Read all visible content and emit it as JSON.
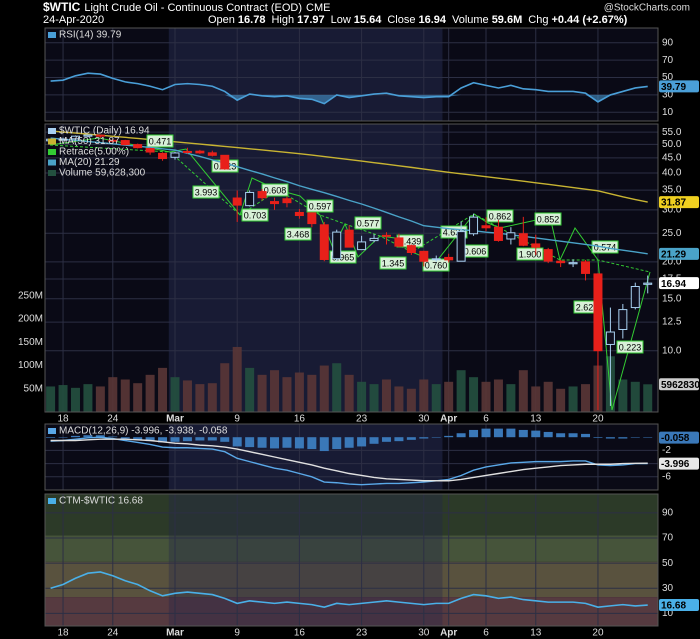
{
  "header": {
    "symbol": "$WTIC",
    "name": "Light Crude Oil - Continuous Contract (EOD)",
    "exchange": "CME",
    "watermark": "@StockCharts.com",
    "date": "24-Apr-2020",
    "stats": [
      {
        "label": "Open",
        "value": 16.78
      },
      {
        "label": "High",
        "value": 17.97
      },
      {
        "label": "Low",
        "value": 15.64
      },
      {
        "label": "Close",
        "value": 16.94
      },
      {
        "label": "Volume",
        "value": "59.6M"
      },
      {
        "label": "Chg",
        "value": "+0.44 (+2.67%)"
      }
    ]
  },
  "chart_data": [
    {
      "type": "line",
      "label": "RSI(14) 39.79",
      "ylim": [
        0,
        107
      ],
      "yticks": [
        10,
        30,
        50,
        70,
        90
      ],
      "grid": true,
      "fill_below": 30,
      "series": [
        {
          "color": "#4a9fd8",
          "tag": "#4a9fd8",
          "values": [
            46,
            47,
            52,
            55,
            54,
            49,
            45,
            43,
            40,
            36,
            42,
            43,
            42,
            40,
            34,
            24,
            31,
            29,
            28,
            29,
            26,
            25,
            20,
            30,
            27,
            29,
            31,
            32,
            29,
            28,
            27,
            28,
            28,
            38,
            44,
            41,
            38,
            41,
            37,
            36,
            34,
            34,
            34,
            32,
            22,
            30,
            34,
            38,
            39.79
          ]
        }
      ]
    },
    {
      "type": "candlestick",
      "log": true,
      "ylim": [
        6.2,
        58.6
      ],
      "grid": true,
      "yticks": [
        {
          "value": 55,
          "label": "55.0"
        },
        {
          "value": 50,
          "label": "50.0"
        },
        {
          "value": 45,
          "label": "45.0"
        },
        {
          "value": 40,
          "label": "40.0"
        },
        {
          "value": 35,
          "label": "35.0"
        },
        {
          "value": 30,
          "label": "30.0"
        },
        {
          "value": 25,
          "label": "25.0"
        },
        {
          "value": 20,
          "label": "20.0"
        },
        17.5,
        {
          "value": 15,
          "label": "15.0"
        },
        12.5,
        {
          "value": 10,
          "label": "10.0"
        }
      ],
      "y2lim": [
        0,
        620000000
      ],
      "y2ticks": [
        {
          "value": 50000000,
          "label": "50M"
        },
        {
          "value": 100000000,
          "label": "100M"
        },
        {
          "value": 150000000,
          "label": "150M"
        },
        {
          "value": 200000000,
          "label": "200M"
        },
        {
          "value": 250000000,
          "label": "250M"
        }
      ],
      "categories": [
        null,
        "18",
        null,
        null,
        null,
        "24",
        null,
        null,
        null,
        null,
        "Mar",
        null,
        null,
        null,
        null,
        "9",
        null,
        null,
        null,
        null,
        "16",
        null,
        null,
        null,
        null,
        "23",
        null,
        null,
        null,
        null,
        "30",
        null,
        "Apr",
        null,
        null,
        "6",
        null,
        null,
        null,
        "13",
        null,
        null,
        null,
        null,
        "20",
        null,
        null,
        null,
        null
      ],
      "series": [
        {
          "name": "$WTIC (Daily) 16.94",
          "up_color": "#a8d0f0",
          "down_color": "#e8201a",
          "tag": "#ffffff",
          "open": [
            51.4,
            52.0,
            52.2,
            53.3,
            53.7,
            51.6,
            51.5,
            49.9,
            48.4,
            46.6,
            45.2,
            47.3,
            47.4,
            46.8,
            45.9,
            32.9,
            31.0,
            34.6,
            32.0,
            32.7,
            29.4,
            29.3,
            26.7,
            20.5,
            25.6,
            22.0,
            23.6,
            24.6,
            24.1,
            22.7,
            21.7,
            20.4,
            20.7,
            20.1,
            24.9,
            26.5,
            26.2,
            23.9,
            24.9,
            23.0,
            22.0,
            20.1,
            19.7,
            20.0,
            18.2,
            10.5,
            11.8,
            14.0,
            16.78
          ],
          "high": [
            52.2,
            52.7,
            53.6,
            54.0,
            53.9,
            51.9,
            51.8,
            50.3,
            48.7,
            47.0,
            47.1,
            48.7,
            47.9,
            47.6,
            46.0,
            34.9,
            34.9,
            35.3,
            33.0,
            33.3,
            30.2,
            29.4,
            27.3,
            25.7,
            26.6,
            24.5,
            24.8,
            25.2,
            24.9,
            22.9,
            21.8,
            21.0,
            21.3,
            27.4,
            29.1,
            28.3,
            27.7,
            26.2,
            28.4,
            24.7,
            22.3,
            20.3,
            20.4,
            20.3,
            18.3,
            14.0,
            14.4,
            17.0,
            17.97
          ],
          "low": [
            51.1,
            51.7,
            52.0,
            52.8,
            52.6,
            50.4,
            49.6,
            48.4,
            46.1,
            44.0,
            44.4,
            46.5,
            46.4,
            45.5,
            41.0,
            27.3,
            30.8,
            32.3,
            30.0,
            30.6,
            28.0,
            26.2,
            20.1,
            20.1,
            22.4,
            22.0,
            23.3,
            22.9,
            22.4,
            21.1,
            19.3,
            20.0,
            19.9,
            20.1,
            24.5,
            25.4,
            23.4,
            22.9,
            22.6,
            21.1,
            19.8,
            19.2,
            19.2,
            17.3,
            6.3,
            6.5,
            11.0,
            13.8,
            15.64
          ],
          "close": [
            52.05,
            52.05,
            53.29,
            53.78,
            53.38,
            51.43,
            49.9,
            48.73,
            47.09,
            44.76,
            46.75,
            47.18,
            46.78,
            45.9,
            41.28,
            31.13,
            34.36,
            32.98,
            31.5,
            31.73,
            28.7,
            26.95,
            20.37,
            25.22,
            22.43,
            23.36,
            24.01,
            24.49,
            22.6,
            21.51,
            20.09,
            20.48,
            20.31,
            25.32,
            28.34,
            26.08,
            23.63,
            25.09,
            22.76,
            22.41,
            20.11,
            19.87,
            19.87,
            18.27,
            10.0,
            11.57,
            13.78,
            16.5,
            16.94
          ]
        },
        {
          "name": "MA(50) 31.87",
          "color": "#c8b432",
          "tag": "#f0d020",
          "values": [
            55.5,
            55.05,
            54.6,
            54.15,
            53.7,
            53.25,
            52.8,
            52.35,
            51.9,
            51.45,
            51.0,
            50.55,
            50.1,
            49.65,
            49.2,
            48.75,
            48.3,
            47.85,
            47.4,
            46.95,
            46.5,
            45.98,
            45.45,
            44.93,
            44.4,
            43.88,
            43.35,
            42.83,
            42.3,
            41.78,
            41.25,
            40.73,
            40.2,
            39.75,
            39.3,
            38.85,
            38.4,
            37.95,
            37.5,
            37.05,
            36.6,
            36.15,
            35.7,
            35.25,
            34.8,
            34.0,
            33.2,
            32.5,
            31.87
          ]
        },
        {
          "name": "Retrace(5.00%)",
          "color": "#33cc33",
          "annotations": [
            "0.471",
            "0.423",
            "3.993",
            "0.703",
            "0.608",
            "0.597",
            "3.468",
            "0.965",
            "0.577",
            "1.345",
            "0.439",
            "0.760",
            "4.638",
            "0.606",
            "0.862",
            "1.900",
            "0.852",
            "0.574",
            "2.628",
            "0.223"
          ]
        },
        {
          "name": "MA(20) 21.29",
          "color": "#4aa3c8",
          "tag": "#4aa3c8",
          "values": [
            52.5,
            52.0,
            51.6,
            51.1,
            50.7,
            50.2,
            49.7,
            49.3,
            48.8,
            48.3,
            47.8,
            46.6,
            45.5,
            44.3,
            43.2,
            42.0,
            40.8,
            39.7,
            38.5,
            37.4,
            36.2,
            35.2,
            34.3,
            33.3,
            32.3,
            31.4,
            30.4,
            29.4,
            28.4,
            27.5,
            26.5,
            26.2,
            25.9,
            25.7,
            25.5,
            25.2,
            25.0,
            24.7,
            24.4,
            24.1,
            23.8,
            23.5,
            23.2,
            22.9,
            22.6,
            22.2,
            21.9,
            21.6,
            21.29
          ]
        },
        {
          "name": "Volume 59,628,300",
          "axis": "y2",
          "up_color": "#23503f",
          "down_color": "#5a3636",
          "tag": "#cccccc",
          "values": [
            55000000,
            58000000,
            52000000,
            60000000,
            55000000,
            75000000,
            70000000,
            62000000,
            80000000,
            95000000,
            75000000,
            68000000,
            60000000,
            62000000,
            105000000,
            140000000,
            95000000,
            80000000,
            90000000,
            75000000,
            85000000,
            80000000,
            100000000,
            105000000,
            80000000,
            65000000,
            60000000,
            70000000,
            55000000,
            50000000,
            70000000,
            60000000,
            65000000,
            90000000,
            75000000,
            65000000,
            70000000,
            60000000,
            90000000,
            55000000,
            65000000,
            50000000,
            55000000,
            60000000,
            100000000,
            120000000,
            70000000,
            65000000,
            59628300
          ]
        }
      ]
    },
    {
      "type": "macd",
      "label": "MACD(12,26,9) -3.996, -3.938, -0.058",
      "ylim": [
        -8,
        2
      ],
      "yticks": [
        -2,
        -4,
        -6
      ],
      "grid": true,
      "series": [
        {
          "color": "#5aa8e8",
          "tag": "#e8e8e8",
          "values": [
            -0.6,
            -0.5,
            -0.3,
            -0.1,
            0.0,
            -0.2,
            -0.5,
            -0.8,
            -1.1,
            -1.5,
            -1.6,
            -1.6,
            -1.7,
            -1.8,
            -2.2,
            -3.2,
            -3.7,
            -4.2,
            -4.7,
            -5.0,
            -5.5,
            -6.0,
            -6.8,
            -6.9,
            -7.1,
            -7.2,
            -7.1,
            -7.0,
            -7.0,
            -6.9,
            -6.8,
            -6.6,
            -6.4,
            -5.8,
            -5.0,
            -4.5,
            -4.2,
            -3.9,
            -3.8,
            -3.7,
            -3.7,
            -3.7,
            -3.6,
            -3.6,
            -4.2,
            -4.3,
            -4.2,
            -4.0,
            -3.996
          ]
        },
        {
          "color": "#e0e0e0",
          "values": [
            -0.5,
            -0.5,
            -0.5,
            -0.4,
            -0.3,
            -0.3,
            -0.3,
            -0.4,
            -0.5,
            -0.7,
            -0.9,
            -1.0,
            -1.2,
            -1.3,
            -1.5,
            -1.8,
            -2.2,
            -2.6,
            -3.0,
            -3.4,
            -3.8,
            -4.2,
            -4.7,
            -5.1,
            -5.5,
            -5.8,
            -6.1,
            -6.3,
            -6.4,
            -6.5,
            -6.6,
            -6.6,
            -6.6,
            -6.4,
            -6.1,
            -5.8,
            -5.5,
            -5.2,
            -4.9,
            -4.7,
            -4.5,
            -4.3,
            -4.2,
            -4.1,
            -4.1,
            -4.1,
            -4.0,
            -3.95,
            -3.938
          ]
        },
        {
          "color": "#3a78b8",
          "tag": "#3a78b8",
          "bars": true,
          "values": [
            -0.1,
            0.0,
            0.2,
            0.3,
            0.3,
            0.1,
            -0.2,
            -0.4,
            -0.6,
            -0.8,
            -0.7,
            -0.6,
            -0.5,
            -0.5,
            -0.7,
            -1.4,
            -1.5,
            -1.6,
            -1.7,
            -1.6,
            -1.7,
            -1.8,
            -2.1,
            -1.8,
            -1.6,
            -1.4,
            -1.0,
            -0.7,
            -0.6,
            -0.4,
            -0.2,
            0.0,
            0.2,
            0.6,
            1.1,
            1.3,
            1.3,
            1.3,
            1.1,
            1.0,
            0.8,
            0.6,
            0.6,
            0.5,
            -0.1,
            -0.2,
            -0.2,
            -0.05,
            -0.058
          ]
        }
      ]
    },
    {
      "type": "line",
      "label": "CTM-$WTIC 16.68",
      "ylim": [
        0,
        105
      ],
      "yticks": [
        10,
        30,
        50,
        70,
        90
      ],
      "grid": true,
      "zones": [
        {
          "from": 72,
          "to": 105,
          "color": "#2c3a28"
        },
        {
          "from": 51,
          "to": 72,
          "color": "#46543a"
        },
        {
          "from": 23,
          "to": 51,
          "color": "#59523e"
        },
        {
          "from": 0,
          "to": 23,
          "color": "#563a40"
        }
      ],
      "categories": [
        null,
        "18",
        null,
        null,
        null,
        "24",
        null,
        null,
        null,
        null,
        "Mar",
        null,
        null,
        null,
        null,
        "9",
        null,
        null,
        null,
        null,
        "16",
        null,
        null,
        null,
        null,
        "23",
        null,
        null,
        null,
        null,
        "30",
        null,
        "Apr",
        null,
        null,
        "6",
        null,
        null,
        null,
        "13",
        null,
        null,
        null,
        null,
        "20",
        null,
        null,
        null,
        null
      ],
      "series": [
        {
          "color": "#4ab0e8",
          "tag": "#4ab0e8",
          "values": [
            30,
            33,
            38,
            42,
            43,
            40,
            36,
            33,
            28,
            24,
            26,
            27,
            26,
            25,
            22,
            18,
            20,
            19,
            18,
            19,
            18,
            17,
            15,
            18,
            17,
            18,
            19,
            20,
            19,
            18,
            17,
            18,
            18,
            22,
            25,
            24,
            22,
            23,
            21,
            20,
            19,
            19,
            19,
            18,
            15,
            16,
            17,
            16,
            16.68
          ]
        }
      ]
    }
  ]
}
